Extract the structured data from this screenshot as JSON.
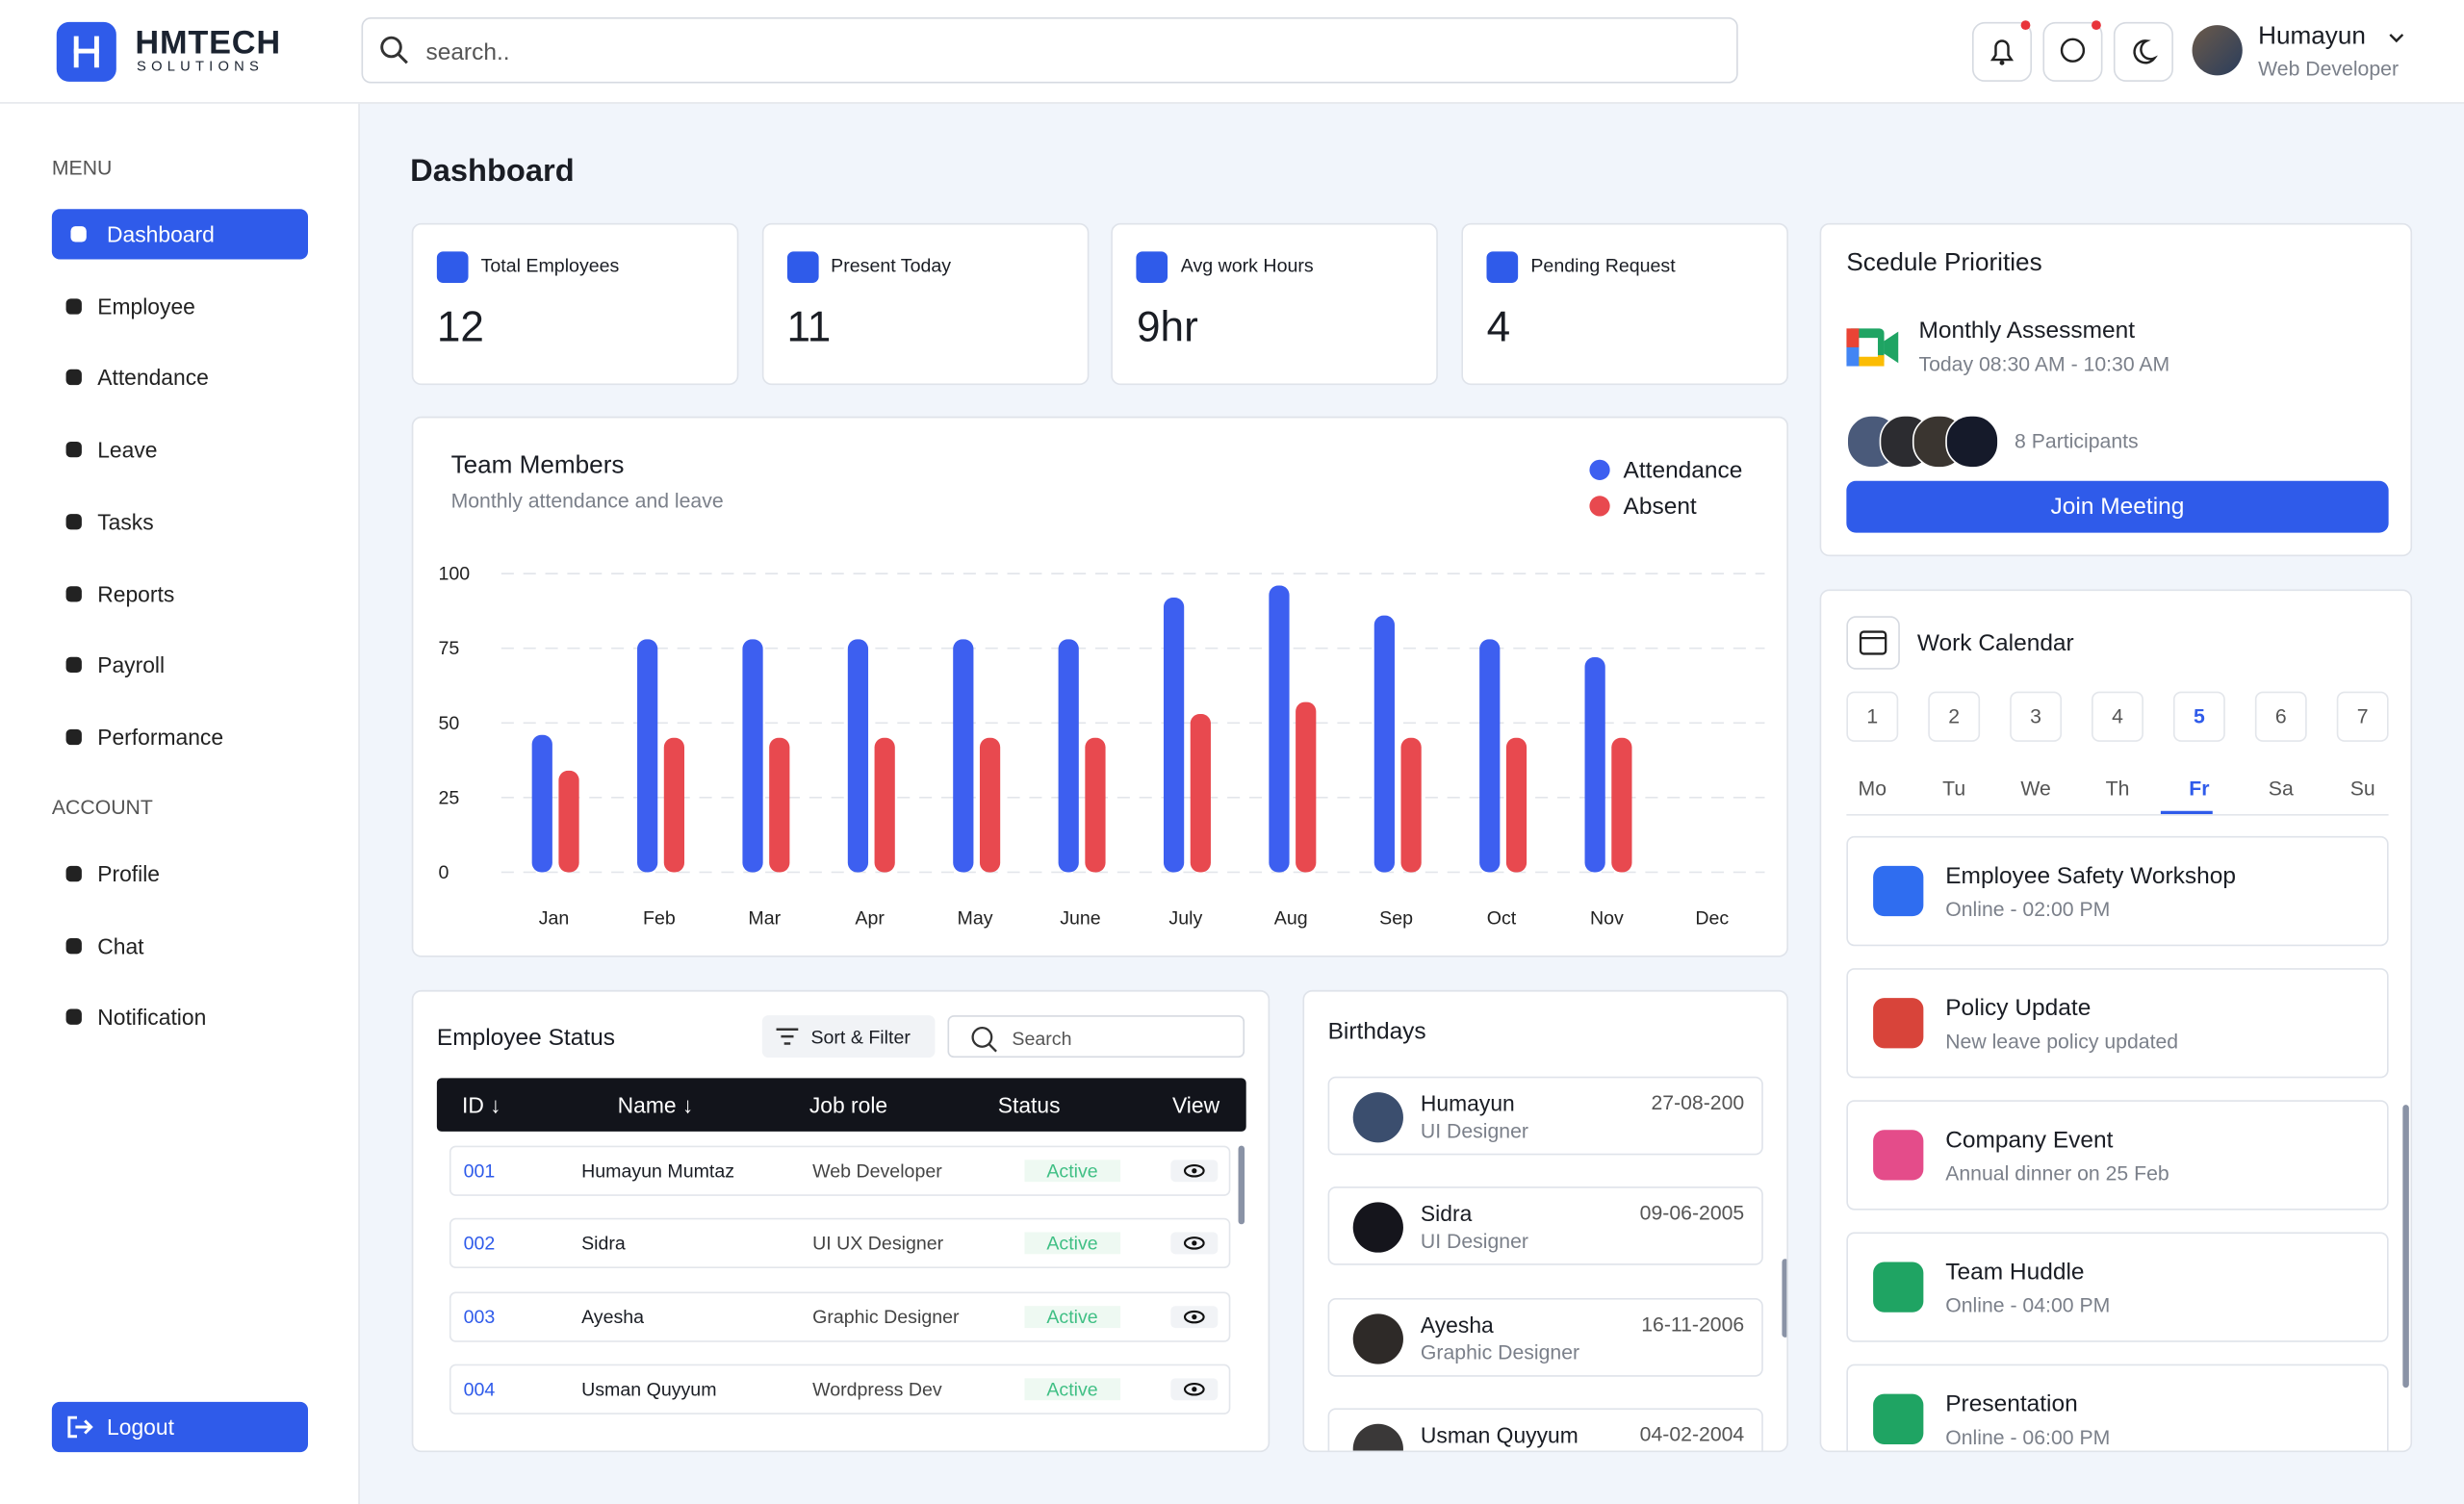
{
  "header": {
    "brand": "HMTECH",
    "brand_sub": "SOLUTIONS",
    "search_placeholder": "search..",
    "user_name": "Humayun",
    "user_role": "Web Developer"
  },
  "sidebar": {
    "menu_label": "MENU",
    "menu": [
      "Dashboard",
      "Employee",
      "Attendance",
      "Leave",
      "Tasks",
      "Reports",
      "Payroll",
      "Performance"
    ],
    "account_label": "ACCOUNT",
    "account": [
      "Profile",
      "Chat",
      "Notification"
    ],
    "logout": "Logout"
  },
  "page_title": "Dashboard",
  "stats": [
    {
      "label": "Total Employees",
      "value": "12"
    },
    {
      "label": "Present Today",
      "value": "11"
    },
    {
      "label": "Avg work Hours",
      "value": "9hr"
    },
    {
      "label": "Pending Request",
      "value": "4"
    }
  ],
  "chart_data": {
    "type": "bar",
    "title": "Team Members",
    "subtitle": "Monthly attendance and leave",
    "categories": [
      "Jan",
      "Feb",
      "Mar",
      "Apr",
      "May",
      "June",
      "July",
      "Aug",
      "Sep",
      "Oct",
      "Nov",
      "Dec"
    ],
    "series": [
      {
        "name": "Attendance",
        "color": "#3d5ff0",
        "values": [
          46,
          78,
          78,
          78,
          78,
          78,
          92,
          96,
          86,
          78,
          72,
          null
        ]
      },
      {
        "name": "Absent",
        "color": "#e8494f",
        "values": [
          34,
          45,
          45,
          45,
          45,
          45,
          53,
          57,
          45,
          45,
          45,
          null
        ]
      }
    ],
    "ylim": [
      0,
      100
    ],
    "yticks": [
      0,
      25,
      50,
      75,
      100
    ],
    "grid": true,
    "legend": "top-right"
  },
  "employee_status": {
    "title": "Employee Status",
    "sort_filter": "Sort & Filter",
    "search_placeholder": "Search",
    "columns": [
      "ID ↓",
      "Name ↓",
      "Job role",
      "Status",
      "View"
    ],
    "rows": [
      [
        "001",
        "Humayun Mumtaz",
        "Web Developer",
        "Active"
      ],
      [
        "002",
        "Sidra",
        "UI UX Designer",
        "Active"
      ],
      [
        "003",
        "Ayesha",
        "Graphic Designer",
        "Active"
      ],
      [
        "004",
        "Usman Quyyum",
        "Wordpress Dev",
        "Active"
      ]
    ]
  },
  "birthdays": {
    "title": "Birthdays",
    "people": [
      {
        "name": "Humayun",
        "role": "UI Designer",
        "date": "27-08-200"
      },
      {
        "name": "Sidra",
        "role": "UI Designer",
        "date": "09-06-2005"
      },
      {
        "name": "Ayesha",
        "role": "Graphic Designer",
        "date": "16-11-2006"
      },
      {
        "name": "Usman Quyyum",
        "date": "04-02-2004"
      }
    ]
  },
  "schedule": {
    "title": "Scedule Priorities",
    "event": "Monthly Assessment",
    "time": "Today 08:30 AM - 10:30 AM",
    "participants": "8 Participants",
    "button": "Join Meeting"
  },
  "calendar": {
    "title": "Work Calendar",
    "days": [
      "1",
      "2",
      "3",
      "4",
      "5",
      "6",
      "7"
    ],
    "weekdays": [
      "Mo",
      "Tu",
      "We",
      "Th",
      "Fr",
      "Sa",
      "Su"
    ],
    "active": 4,
    "events": [
      {
        "title": "Employee Safety Workshop",
        "detail": "Online - 02:00 PM"
      },
      {
        "title": "Policy Update",
        "detail": "New leave policy updated"
      },
      {
        "title": "Company Event",
        "detail": "Annual dinner on 25 Feb"
      },
      {
        "title": "Team Huddle",
        "detail": "Online - 04:00 PM"
      },
      {
        "title": "Presentation",
        "detail": "Online - 06:00 PM"
      }
    ]
  }
}
